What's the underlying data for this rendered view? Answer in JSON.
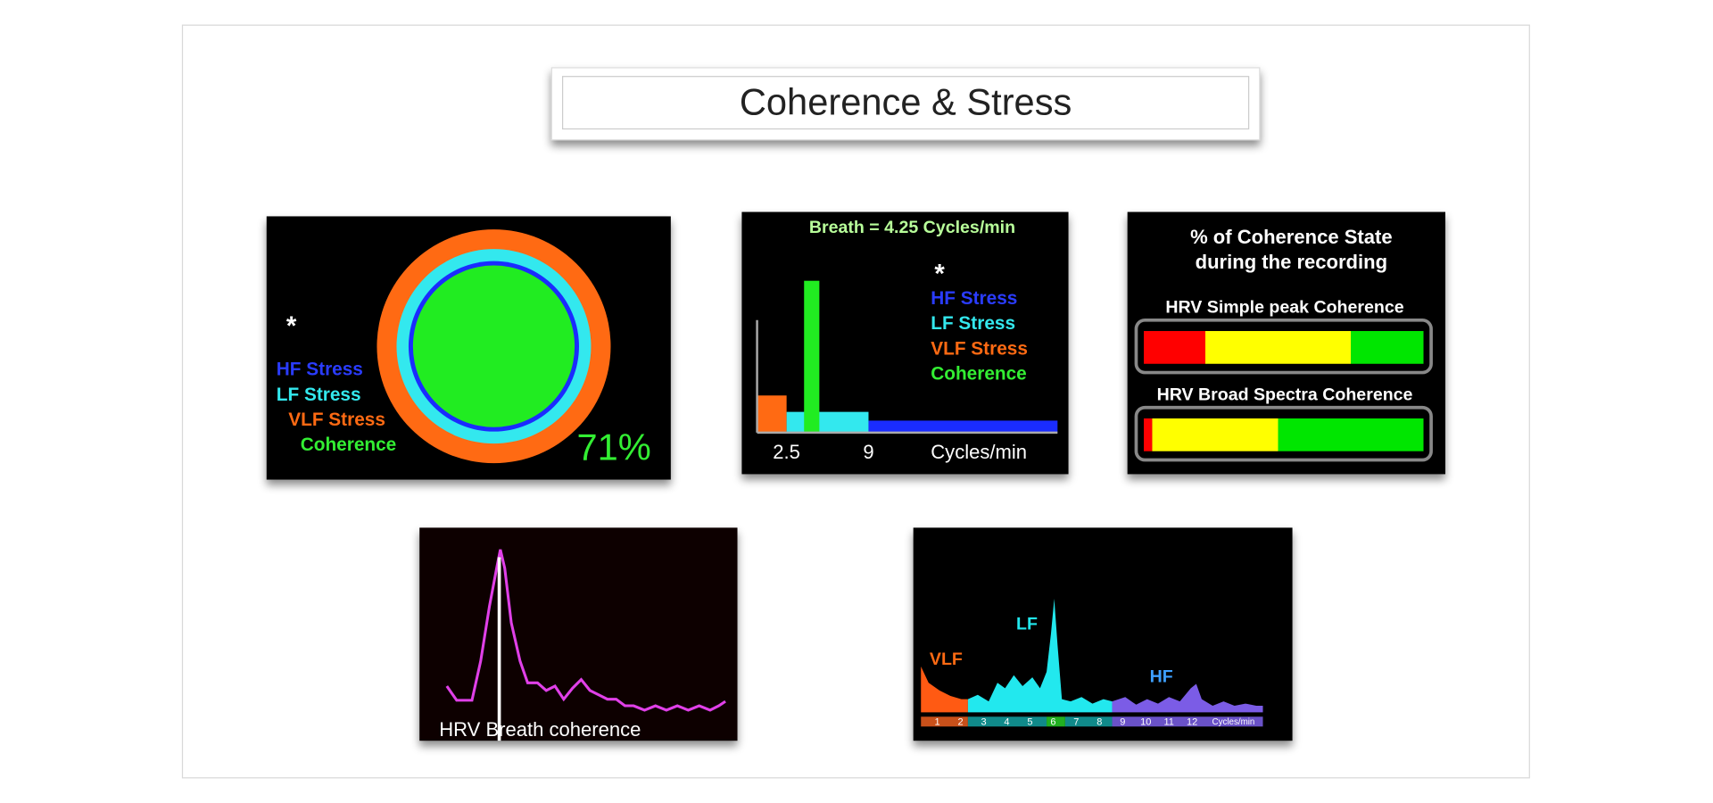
{
  "title": "Coherence & Stress",
  "ring_panel": {
    "asterisk": "*",
    "legend": [
      "HF Stress",
      "LF Stress",
      "VLF Stress",
      "Coherence"
    ],
    "score": "71%"
  },
  "breath_panel": {
    "title": "Breath = 4.25 Cycles/min",
    "asterisk": "*",
    "legend": [
      "HF Stress",
      "LF Stress",
      "VLF Stress",
      "Coherence"
    ],
    "axis_labels": [
      "2.5",
      "9",
      "Cycles/min"
    ]
  },
  "state_panel": {
    "title_lines": [
      "% of Coherence State",
      "during the recording"
    ],
    "meters": [
      {
        "label": "HRV Simple peak Coherence",
        "segments": [
          {
            "color": "#ff0000",
            "value": 22
          },
          {
            "color": "#ffff00",
            "value": 52
          },
          {
            "color": "#00e600",
            "value": 26
          }
        ]
      },
      {
        "label": "HRV Broad Spectra Coherence",
        "segments": [
          {
            "color": "#ff0000",
            "value": 3
          },
          {
            "color": "#ffff00",
            "value": 45
          },
          {
            "color": "#00e600",
            "value": 52
          }
        ]
      }
    ]
  },
  "breath_curve": {
    "caption": "HRV Breath coherence"
  },
  "spectrum": {
    "bands": [
      "VLF",
      "LF",
      "HF"
    ],
    "ticks": [
      "1",
      "2",
      "3",
      "4",
      "5",
      "6",
      "7",
      "8",
      "9",
      "10",
      "11",
      "12",
      "Cycles/min"
    ]
  }
}
